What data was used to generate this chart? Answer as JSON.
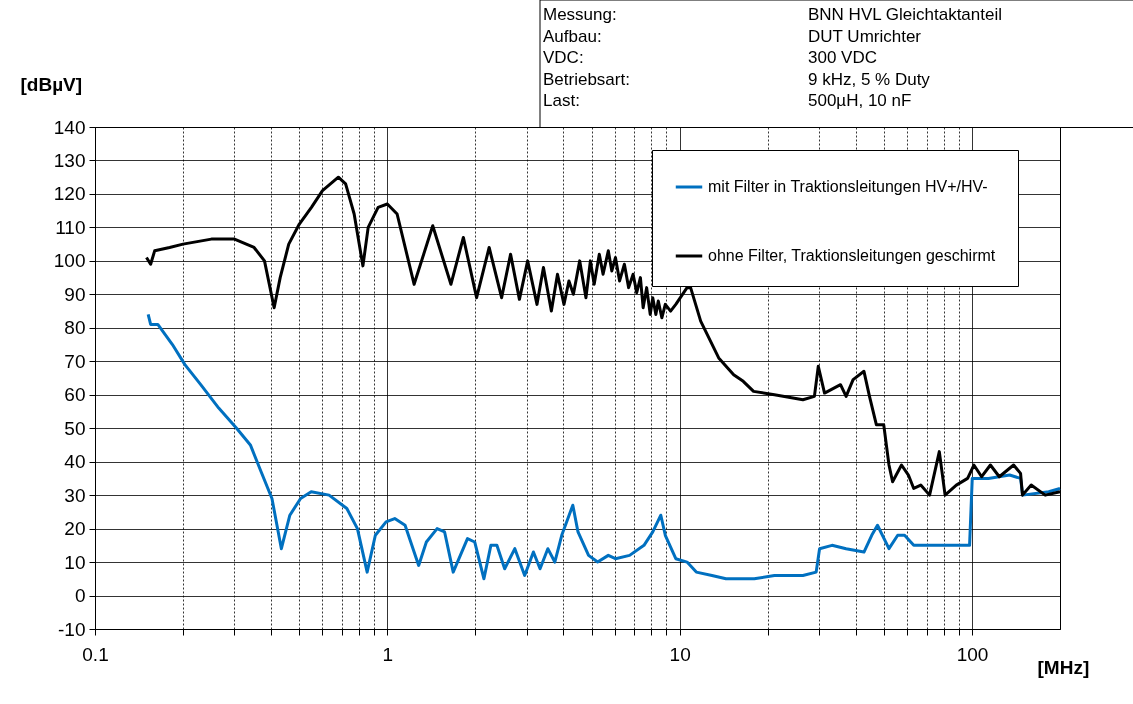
{
  "chart_data": {
    "type": "line",
    "xlabel": "[MHz]",
    "ylabel": "[dBµV]",
    "annotations": [
      "Messung:",
      "BNN HVL Gleichtaktanteil",
      "Aufbau:",
      "DUT Umrichter",
      "VDC:",
      "300 VDC",
      "Betriebsart:",
      "9 kHz, 5 % Duty",
      "Last:",
      "500µH, 10 nF"
    ],
    "log": "x",
    "grid": true,
    "legend": "top right",
    "line_style": "solid",
    "marker": "none",
    "xlim": [
      0.1,
      200
    ],
    "ylim": [
      -10,
      140
    ],
    "xticks": [
      0.1,
      {
        "value": 0.2,
        "label": null
      },
      {
        "value": 0.3,
        "label": null
      },
      {
        "value": 0.4,
        "label": null
      },
      {
        "value": 0.5,
        "label": null
      },
      {
        "value": 0.6,
        "label": null
      },
      {
        "value": 0.7,
        "label": null
      },
      {
        "value": 0.8,
        "label": null
      },
      {
        "value": 0.9,
        "label": null
      },
      1,
      {
        "value": 2,
        "label": null
      },
      {
        "value": 3,
        "label": null
      },
      {
        "value": 4,
        "label": null
      },
      {
        "value": 5,
        "label": null
      },
      {
        "value": 6,
        "label": null
      },
      {
        "value": 7,
        "label": null
      },
      {
        "value": 8,
        "label": null
      },
      {
        "value": 9,
        "label": null
      },
      10,
      {
        "value": 20,
        "label": null
      },
      {
        "value": 30,
        "label": null
      },
      {
        "value": 40,
        "label": null
      },
      {
        "value": 50,
        "label": null
      },
      {
        "value": 60,
        "label": null
      },
      {
        "value": 70,
        "label": null
      },
      {
        "value": 80,
        "label": null
      },
      {
        "value": 90,
        "label": null
      },
      100
    ],
    "yticks": [
      -10,
      0,
      10,
      20,
      30,
      40,
      50,
      60,
      70,
      80,
      90,
      100,
      110,
      120,
      130,
      140
    ],
    "series": [
      {
        "name": "mit Filter in Traktionsleitungen HV+/HV-",
        "color": "#0070c0",
        "x": [
          0.152,
          0.155,
          0.164,
          0.184,
          0.203,
          0.23,
          0.265,
          0.305,
          0.34,
          0.37,
          0.403,
          0.434,
          0.464,
          0.505,
          0.549,
          0.632,
          0.727,
          0.79,
          0.853,
          0.91,
          0.99,
          1.06,
          1.15,
          1.28,
          1.36,
          1.48,
          1.57,
          1.68,
          1.88,
          1.99,
          2.14,
          2.26,
          2.37,
          2.52,
          2.73,
          2.95,
          3.16,
          3.33,
          3.54,
          3.74,
          3.95,
          4.31,
          4.49,
          4.88,
          5.24,
          5.7,
          6.03,
          6.74,
          7.55,
          8.09,
          8.62,
          8.93,
          9.7,
          10.6,
          11.4,
          12.9,
          14.4,
          16.1,
          18.0,
          21.1,
          26.4,
          29.3,
          30.1,
          33.2,
          37.1,
          42.7,
          45.4,
          47.5,
          52.0,
          55.7,
          58.8,
          63.2,
          74.7,
          88.4,
          98.1,
          100.2,
          113.8,
          134.5,
          146.6,
          149.1,
          183,
          200
        ],
        "values": [
          84,
          81,
          81,
          75,
          69,
          63,
          56,
          50,
          45,
          37,
          29,
          14,
          24,
          29,
          31,
          30,
          26,
          20,
          7,
          18,
          22,
          23,
          21,
          9,
          16,
          20,
          19,
          7,
          17,
          16,
          5,
          15,
          15,
          8,
          14,
          6,
          13,
          8,
          14,
          10,
          18,
          27,
          19,
          12,
          10,
          12,
          11,
          12,
          15,
          19,
          24,
          18,
          11,
          10,
          7,
          6,
          5,
          5,
          5,
          6,
          6,
          7,
          14,
          15,
          14,
          13,
          18,
          21,
          14,
          18,
          18,
          15,
          15,
          15,
          15,
          35,
          35,
          36,
          35,
          30,
          31,
          32
        ]
      },
      {
        "name": "ohne Filter, Traktionsleitungen geschirmt",
        "color": "#000000",
        "x": [
          0.15,
          0.155,
          0.16,
          0.18,
          0.2,
          0.25,
          0.3,
          0.35,
          0.38,
          0.41,
          0.43,
          0.46,
          0.5,
          0.55,
          0.6,
          0.68,
          0.72,
          0.77,
          0.825,
          0.86,
          0.93,
          1.0,
          1.08,
          1.235,
          1.43,
          1.65,
          1.82,
          2.02,
          2.23,
          2.46,
          2.64,
          2.83,
          3.02,
          3.25,
          3.42,
          3.64,
          3.82,
          4.02,
          4.18,
          4.33,
          4.55,
          4.78,
          4.95,
          5.1,
          5.31,
          5.47,
          5.7,
          5.86,
          6.03,
          6.23,
          6.47,
          6.69,
          6.93,
          7.13,
          7.34,
          7.5,
          7.71,
          7.93,
          8.09,
          8.29,
          8.45,
          8.69,
          8.93,
          9.31,
          9.7,
          10.6,
          10.9,
          11.8,
          13.6,
          15.3,
          16.5,
          17.9,
          21.1,
          26.4,
          28.9,
          29.8,
          31.3,
          35.5,
          37.1,
          39.2,
          42.7,
          44.6,
          47.1,
          49.9,
          52.0,
          53.5,
          57.4,
          60.6,
          63.2,
          66.8,
          71.6,
          77.3,
          80.9,
          88.4,
          96.6,
          101.5,
          107.9,
          115.6,
          124,
          138.8,
          146.6,
          148.8,
          159.4,
          178,
          200
        ],
        "values": [
          101,
          99,
          103,
          104,
          105,
          106.5,
          106.5,
          104,
          100,
          86,
          95,
          105,
          111,
          116,
          121,
          125,
          123,
          114,
          98.5,
          110,
          116,
          117,
          114,
          93,
          110.5,
          93,
          107,
          89,
          104,
          89,
          102,
          88.5,
          100,
          87,
          98,
          85,
          96,
          87,
          94,
          90,
          100,
          89,
          100,
          93,
          102,
          96,
          103,
          97,
          101,
          94,
          99,
          92,
          96,
          90.5,
          95,
          86,
          92,
          84,
          89,
          84,
          88,
          83,
          87,
          85,
          87,
          92,
          92,
          82,
          71,
          66,
          64,
          61,
          60,
          58.5,
          59.5,
          68.5,
          60.5,
          63,
          59.5,
          64.5,
          67,
          59.5,
          51,
          51,
          39,
          34,
          39,
          36,
          32,
          33,
          30,
          43,
          30,
          33,
          35,
          39,
          35.5,
          39,
          35.5,
          39,
          36.5,
          30,
          33,
          30,
          31
        ]
      }
    ]
  }
}
